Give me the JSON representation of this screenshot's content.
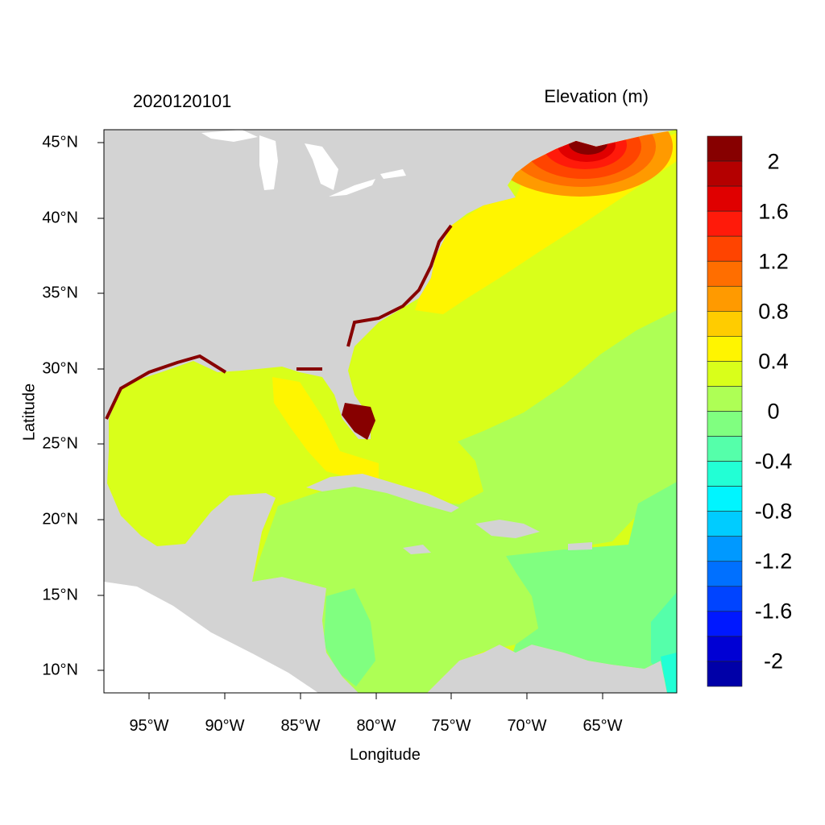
{
  "header": {
    "date": "2020120101",
    "variable": "Elevation (m)"
  },
  "axes": {
    "xlabel": "Longitude",
    "ylabel": "Latitude",
    "xticks": [
      "95°W",
      "90°W",
      "85°W",
      "80°W",
      "75°W",
      "70°W",
      "65°W"
    ],
    "yticks": [
      "45°N",
      "40°N",
      "35°N",
      "30°N",
      "25°N",
      "20°N",
      "15°N",
      "10°N"
    ],
    "lon_range": [
      -98,
      -60
    ],
    "lat_range": [
      8.5,
      46
    ]
  },
  "colorbar": {
    "labels": [
      "2",
      "1.6",
      "1.2",
      "0.8",
      "0.4",
      "0",
      "-0.4",
      "-0.8",
      "-1.2",
      "-1.6",
      "-2"
    ],
    "levels_min": -2.2,
    "levels_max": 2.2,
    "step": 0.2,
    "colors": [
      "#870000",
      "#B40000",
      "#E00000",
      "#FF1A0A",
      "#FF4400",
      "#FF6E00",
      "#FF9A00",
      "#FFCC00",
      "#FFF500",
      "#D9FF1A",
      "#AEFF55",
      "#80FF80",
      "#55FFAA",
      "#22FFD5",
      "#00F5FF",
      "#00CCFF",
      "#0099FF",
      "#0070FF",
      "#0044FF",
      "#0018FF",
      "#0000D4",
      "#0000A8"
    ]
  },
  "map_colors": {
    "land": "#D3D3D3",
    "water_nodata": "#FFFFFF"
  }
}
